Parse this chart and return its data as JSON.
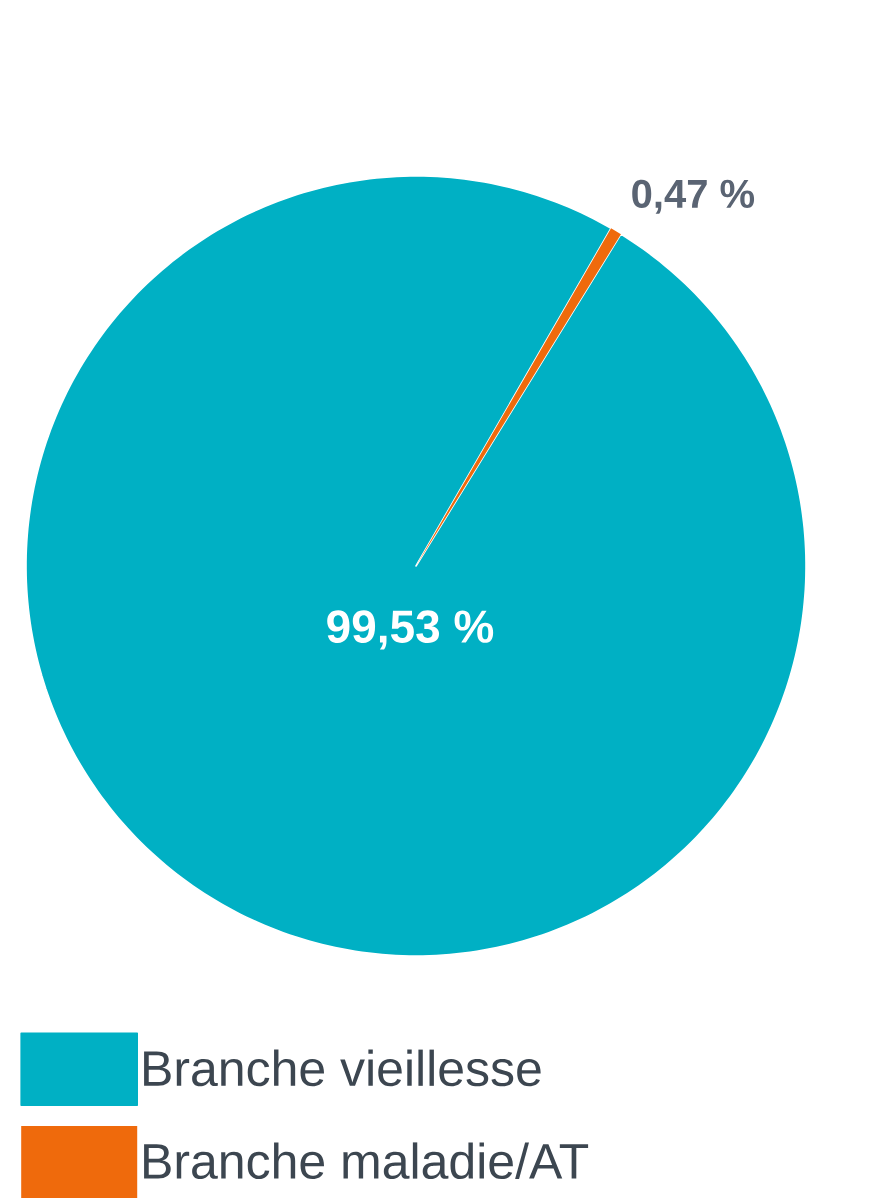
{
  "chart_data": {
    "type": "pie",
    "categories": [
      "Branche vieillesse",
      "Branche maladie/AT"
    ],
    "values": [
      99.53,
      0.47
    ],
    "colors": [
      "#00b0c4",
      "#ef6a0c"
    ],
    "value_labels": [
      "99,53 %",
      "0,47 %"
    ],
    "legend": "bottom"
  }
}
